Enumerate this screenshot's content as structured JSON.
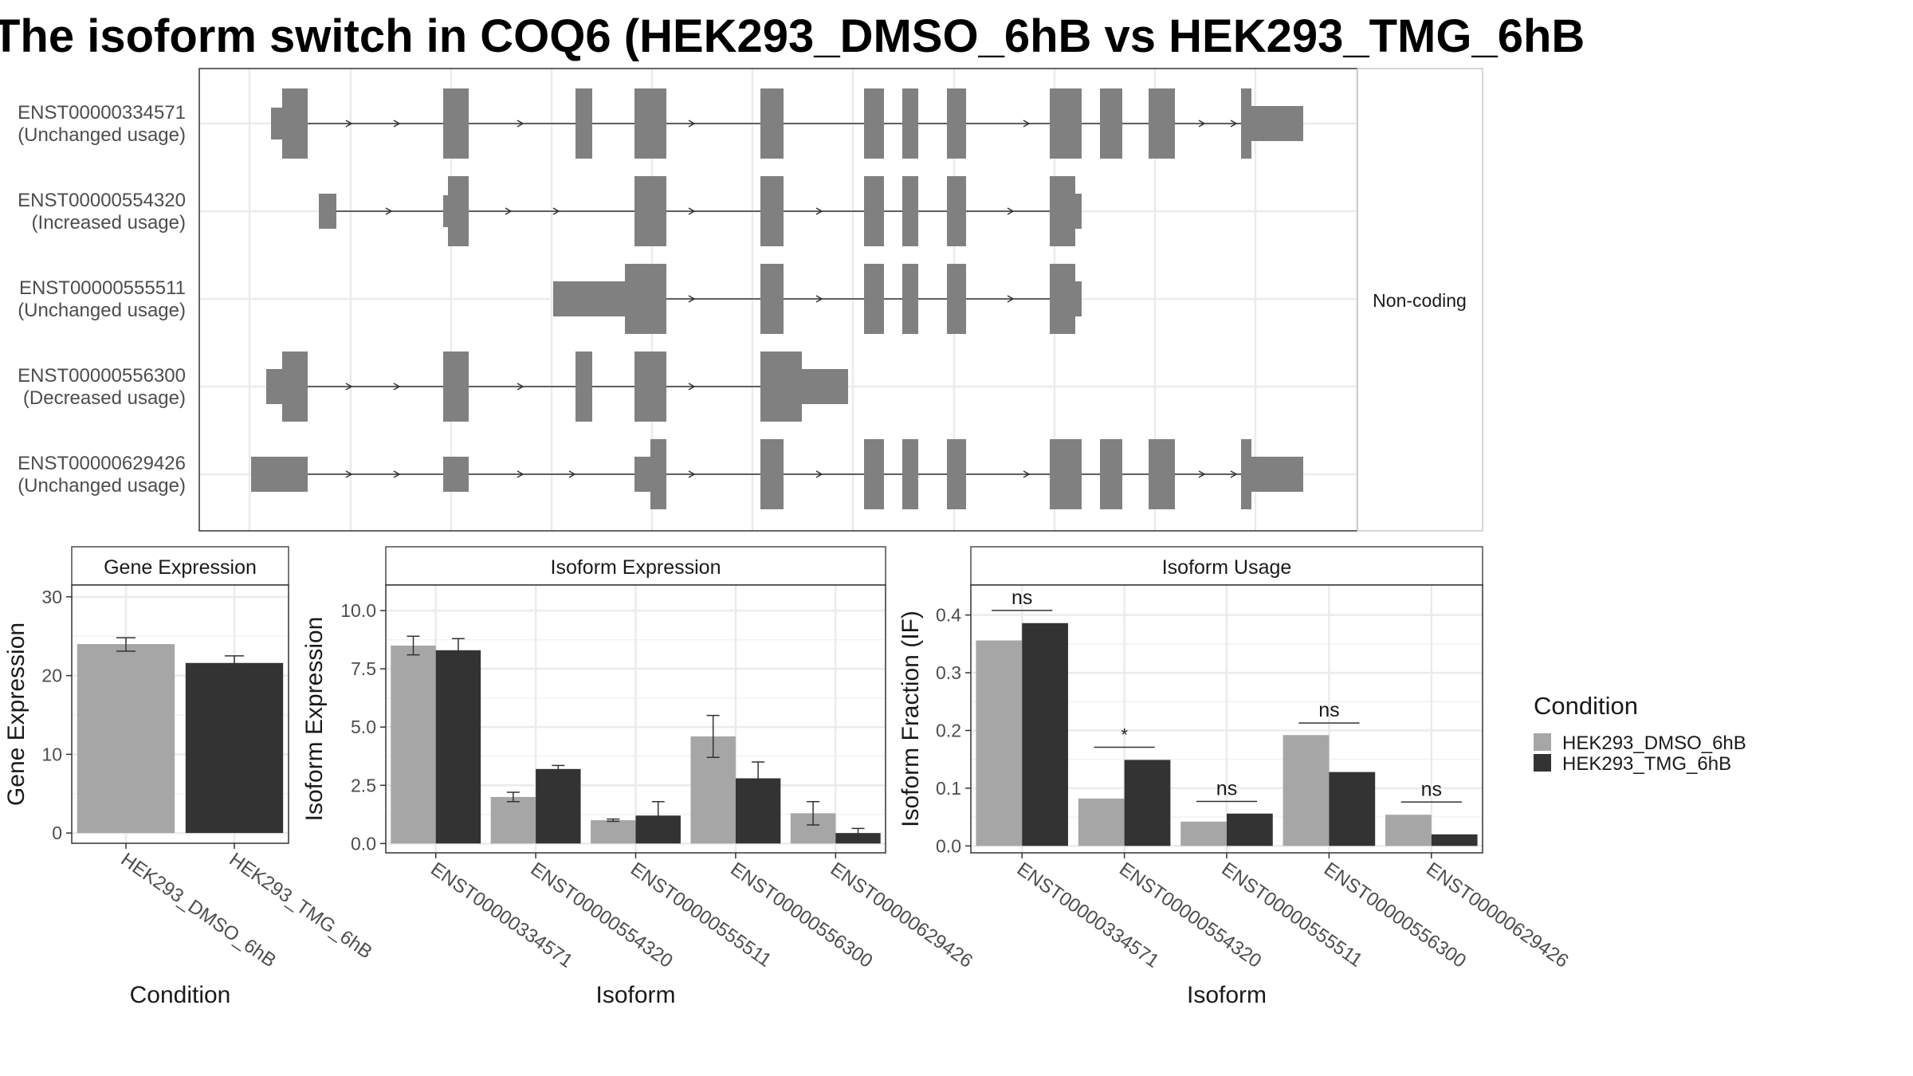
{
  "title": "The isoform switch in COQ6 (HEK293_DMSO_6hB vs HEK293_TMG_6hB",
  "colors": {
    "dmso": "#a6a6a6",
    "tmg": "#333333",
    "exon": "#808080"
  },
  "chart_data": [
    {
      "type": "diagram",
      "panel": "transcript-structures",
      "strip_label": "Non-coding",
      "transcripts": [
        {
          "id": "ENST00000334571",
          "usage": "(Unchanged usage)"
        },
        {
          "id": "ENST00000554320",
          "usage": "(Increased usage)"
        },
        {
          "id": "ENST00000555511",
          "usage": "(Unchanged usage)"
        },
        {
          "id": "ENST00000556300",
          "usage": "(Decreased usage)"
        },
        {
          "id": "ENST00000629426",
          "usage": "(Unchanged usage)"
        }
      ]
    },
    {
      "type": "bar",
      "title": "Gene Expression",
      "xlabel": "Condition",
      "ylabel": "Gene Expression",
      "ylim": [
        -1.3,
        31.5
      ],
      "yticks": [
        0,
        10,
        20,
        30
      ],
      "ytick_labels": [
        "0",
        "10",
        "20",
        "30"
      ],
      "categories": [
        "HEK293_DMSO_6hB",
        "HEK293_TMG_6hB"
      ],
      "values": [
        24.0,
        21.6
      ],
      "errors": [
        [
          23.1,
          24.8
        ],
        [
          20.7,
          22.5
        ]
      ]
    },
    {
      "type": "bar",
      "title": "Isoform Expression",
      "xlabel": "Isoform",
      "ylabel": "Isoform Expression",
      "ylim": [
        -0.4,
        11.1
      ],
      "yticks": [
        0,
        2.5,
        5,
        7.5,
        10
      ],
      "ytick_labels": [
        "0.0",
        "2.5",
        "5.0",
        "7.5",
        "10.0"
      ],
      "categories": [
        "ENST00000334571",
        "ENST00000554320",
        "ENST00000555511",
        "ENST00000556300",
        "ENST00000629426"
      ],
      "series": [
        {
          "name": "HEK293_DMSO_6hB",
          "values": [
            8.5,
            2.0,
            1.0,
            4.6,
            1.3
          ],
          "errors": [
            [
              8.1,
              8.9
            ],
            [
              1.8,
              2.2
            ],
            [
              0.95,
              1.05
            ],
            [
              3.7,
              5.5
            ],
            [
              0.8,
              1.8
            ]
          ]
        },
        {
          "name": "HEK293_TMG_6hB",
          "values": [
            8.3,
            3.2,
            1.2,
            2.8,
            0.45
          ],
          "errors": [
            [
              7.8,
              8.8
            ],
            [
              3.05,
              3.35
            ],
            [
              0.6,
              1.8
            ],
            [
              2.1,
              3.5
            ],
            [
              0.25,
              0.65
            ]
          ]
        }
      ]
    },
    {
      "type": "bar",
      "title": "Isoform Usage",
      "xlabel": "Isoform",
      "ylabel": "Isoform Fraction (IF)",
      "ylim": [
        -0.012,
        0.452
      ],
      "yticks": [
        0,
        0.1,
        0.2,
        0.3,
        0.4
      ],
      "ytick_labels": [
        "0.0",
        "0.1",
        "0.2",
        "0.3",
        "0.4"
      ],
      "categories": [
        "ENST00000334571",
        "ENST00000554320",
        "ENST00000555511",
        "ENST00000556300",
        "ENST00000629426"
      ],
      "series": [
        {
          "name": "HEK293_DMSO_6hB",
          "values": [
            0.356,
            0.082,
            0.042,
            0.192,
            0.054
          ]
        },
        {
          "name": "HEK293_TMG_6hB",
          "values": [
            0.386,
            0.149,
            0.056,
            0.128,
            0.02
          ]
        }
      ],
      "significance": [
        "ns",
        "*",
        "ns",
        "ns",
        "ns"
      ],
      "significance_y": [
        0.408,
        0.171,
        0.077,
        0.213,
        0.076
      ]
    }
  ],
  "legend": {
    "title": "Condition",
    "placement": "right",
    "entries": [
      "HEK293_DMSO_6hB",
      "HEK293_TMG_6hB"
    ]
  }
}
